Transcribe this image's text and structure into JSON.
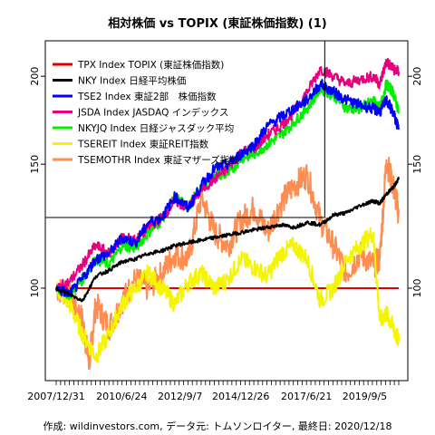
{
  "chart_data": {
    "type": "line",
    "title": "相対株価 vs TOPIX (東証株価指数) (1)",
    "caption": "作成: wildinvestors.com, データ元: トムソンロイター, 最終日: 2020/12/18",
    "x_tick_labels": [
      "2007/12/31",
      "2010/6/24",
      "2012/9/7",
      "2014/12/26",
      "2017/6/21",
      "2019/9/5"
    ],
    "y_ticks": [
      100,
      150,
      200
    ],
    "y_scale": "log",
    "ylim": [
      75,
      220
    ],
    "grid": false,
    "legend_position": "top-left",
    "reference_hline": {
      "y": 100,
      "color": "#e00000"
    },
    "crosshair": {
      "x_date": "2018/3/1",
      "y": 126
    },
    "series": [
      {
        "name": "TPX Index TOPIX (東証株価指数)",
        "color": "#e00000",
        "points": [
          [
            "2007/12/31",
            100
          ],
          [
            "2020/12/18",
            100
          ]
        ]
      },
      {
        "name": "NKY Index 日経平均株価",
        "color": "#000000",
        "points": [
          [
            "2007/12/31",
            100
          ],
          [
            "2008/6/30",
            98
          ],
          [
            "2008/12/31",
            96
          ],
          [
            "2009/6/30",
            104
          ],
          [
            "2009/12/31",
            106
          ],
          [
            "2010/6/30",
            109
          ],
          [
            "2010/12/31",
            110
          ],
          [
            "2011/6/30",
            112
          ],
          [
            "2011/12/31",
            113
          ],
          [
            "2012/6/30",
            115
          ],
          [
            "2012/12/31",
            116
          ],
          [
            "2013/6/30",
            117
          ],
          [
            "2013/12/31",
            118
          ],
          [
            "2014/6/30",
            119
          ],
          [
            "2014/12/31",
            120
          ],
          [
            "2015/6/30",
            121
          ],
          [
            "2015/12/31",
            122
          ],
          [
            "2016/6/30",
            123
          ],
          [
            "2016/12/31",
            122
          ],
          [
            "2017/6/30",
            124
          ],
          [
            "2017/12/31",
            123
          ],
          [
            "2018/6/30",
            127
          ],
          [
            "2018/12/31",
            128
          ],
          [
            "2019/6/30",
            131
          ],
          [
            "2019/12/31",
            133
          ],
          [
            "2020/3/31",
            132
          ],
          [
            "2020/6/30",
            136
          ],
          [
            "2020/9/30",
            139
          ],
          [
            "2020/12/18",
            143
          ]
        ]
      },
      {
        "name": "TSE2 Index 東証2部　株価指数",
        "color": "#0000ff",
        "points": [
          [
            "2007/12/31",
            100
          ],
          [
            "2008/6/30",
            98
          ],
          [
            "2008/12/31",
            103
          ],
          [
            "2009/6/30",
            110
          ],
          [
            "2009/12/31",
            112
          ],
          [
            "2010/6/30",
            118
          ],
          [
            "2010/12/31",
            116
          ],
          [
            "2011/6/30",
            124
          ],
          [
            "2011/12/31",
            126
          ],
          [
            "2012/6/30",
            135
          ],
          [
            "2012/12/31",
            130
          ],
          [
            "2013/6/30",
            140
          ],
          [
            "2013/12/31",
            148
          ],
          [
            "2014/6/30",
            150
          ],
          [
            "2014/12/31",
            155
          ],
          [
            "2015/6/30",
            160
          ],
          [
            "2015/12/31",
            170
          ],
          [
            "2016/6/30",
            175
          ],
          [
            "2016/12/31",
            180
          ],
          [
            "2017/6/30",
            185
          ],
          [
            "2017/12/31",
            195
          ],
          [
            "2018/6/30",
            190
          ],
          [
            "2018/12/31",
            185
          ],
          [
            "2019/6/30",
            182
          ],
          [
            "2019/12/31",
            180
          ],
          [
            "2020/3/31",
            178
          ],
          [
            "2020/6/30",
            185
          ],
          [
            "2020/9/30",
            178
          ],
          [
            "2020/12/18",
            168
          ]
        ]
      },
      {
        "name": "JSDA Index JASDAQ インデックス",
        "color": "#e6007e",
        "points": [
          [
            "2007/12/31",
            100
          ],
          [
            "2008/6/30",
            102
          ],
          [
            "2008/12/31",
            108
          ],
          [
            "2009/6/30",
            115
          ],
          [
            "2009/12/31",
            112
          ],
          [
            "2010/6/30",
            118
          ],
          [
            "2010/12/31",
            117
          ],
          [
            "2011/6/30",
            122
          ],
          [
            "2011/12/31",
            126
          ],
          [
            "2012/6/30",
            133
          ],
          [
            "2012/12/31",
            130
          ],
          [
            "2013/6/30",
            138
          ],
          [
            "2013/12/31",
            143
          ],
          [
            "2014/6/30",
            148
          ],
          [
            "2014/12/31",
            156
          ],
          [
            "2015/6/30",
            158
          ],
          [
            "2015/12/31",
            165
          ],
          [
            "2016/6/30",
            170
          ],
          [
            "2016/12/31",
            178
          ],
          [
            "2017/6/30",
            190
          ],
          [
            "2017/12/31",
            205
          ],
          [
            "2018/6/30",
            200
          ],
          [
            "2018/12/31",
            195
          ],
          [
            "2019/6/30",
            198
          ],
          [
            "2019/12/31",
            200
          ],
          [
            "2020/3/31",
            195
          ],
          [
            "2020/6/30",
            210
          ],
          [
            "2020/9/30",
            205
          ],
          [
            "2020/12/18",
            203
          ]
        ]
      },
      {
        "name": "NKYJQ Index 日経ジャスダック平均",
        "color": "#00ee00",
        "points": [
          [
            "2007/12/31",
            100
          ],
          [
            "2008/6/30",
            98
          ],
          [
            "2008/12/31",
            103
          ],
          [
            "2009/6/30",
            110
          ],
          [
            "2009/12/31",
            108
          ],
          [
            "2010/6/30",
            115
          ],
          [
            "2010/12/31",
            114
          ],
          [
            "2011/6/30",
            120
          ],
          [
            "2011/12/31",
            125
          ],
          [
            "2012/6/30",
            135
          ],
          [
            "2012/12/31",
            130
          ],
          [
            "2013/6/30",
            140
          ],
          [
            "2013/12/31",
            145
          ],
          [
            "2014/6/30",
            145
          ],
          [
            "2014/12/31",
            153
          ],
          [
            "2015/6/30",
            155
          ],
          [
            "2015/12/31",
            160
          ],
          [
            "2016/6/30",
            165
          ],
          [
            "2016/12/31",
            172
          ],
          [
            "2017/6/30",
            180
          ],
          [
            "2017/12/31",
            192
          ],
          [
            "2018/6/30",
            188
          ],
          [
            "2018/12/31",
            180
          ],
          [
            "2019/6/30",
            180
          ],
          [
            "2019/12/31",
            185
          ],
          [
            "2020/3/31",
            180
          ],
          [
            "2020/6/30",
            195
          ],
          [
            "2020/9/30",
            190
          ],
          [
            "2020/12/18",
            178
          ]
        ]
      },
      {
        "name": "TSEREIT Index 東証REIT指数",
        "color": "#f5f500",
        "points": [
          [
            "2007/12/31",
            100
          ],
          [
            "2008/6/30",
            95
          ],
          [
            "2008/12/31",
            86
          ],
          [
            "2009/6/30",
            80
          ],
          [
            "2009/12/31",
            86
          ],
          [
            "2010/6/30",
            95
          ],
          [
            "2010/12/31",
            100
          ],
          [
            "2011/6/30",
            105
          ],
          [
            "2011/12/31",
            100
          ],
          [
            "2012/6/30",
            95
          ],
          [
            "2012/12/31",
            102
          ],
          [
            "2013/6/30",
            105
          ],
          [
            "2013/12/31",
            100
          ],
          [
            "2014/6/30",
            103
          ],
          [
            "2014/12/31",
            110
          ],
          [
            "2015/6/30",
            107
          ],
          [
            "2015/12/31",
            104
          ],
          [
            "2016/6/30",
            112
          ],
          [
            "2016/12/31",
            115
          ],
          [
            "2017/6/30",
            110
          ],
          [
            "2017/12/31",
            96
          ],
          [
            "2018/6/30",
            100
          ],
          [
            "2018/12/31",
            110
          ],
          [
            "2019/6/30",
            115
          ],
          [
            "2019/12/31",
            120
          ],
          [
            "2020/3/31",
            90
          ],
          [
            "2020/6/30",
            92
          ],
          [
            "2020/9/30",
            88
          ],
          [
            "2020/12/18",
            84
          ]
        ]
      },
      {
        "name": "TSEMOTHR Index 東証マザーズ指数",
        "color": "#ff8c50",
        "points": [
          [
            "2007/12/31",
            100
          ],
          [
            "2008/6/30",
            98
          ],
          [
            "2008/12/31",
            90
          ],
          [
            "2009/3/31",
            78
          ],
          [
            "2009/6/30",
            95
          ],
          [
            "2009/12/31",
            88
          ],
          [
            "2010/6/30",
            96
          ],
          [
            "2010/12/31",
            103
          ],
          [
            "2011/6/30",
            100
          ],
          [
            "2011/12/31",
            105
          ],
          [
            "2012/6/30",
            112
          ],
          [
            "2012/12/31",
            110
          ],
          [
            "2013/6/30",
            135
          ],
          [
            "2013/12/31",
            120
          ],
          [
            "2014/6/30",
            115
          ],
          [
            "2014/12/31",
            125
          ],
          [
            "2015/6/30",
            130
          ],
          [
            "2015/12/31",
            120
          ],
          [
            "2016/6/30",
            132
          ],
          [
            "2016/12/31",
            140
          ],
          [
            "2017/6/30",
            145
          ],
          [
            "2017/12/31",
            125
          ],
          [
            "2018/6/30",
            115
          ],
          [
            "2018/12/31",
            105
          ],
          [
            "2019/6/30",
            112
          ],
          [
            "2019/12/31",
            108
          ],
          [
            "2020/3/31",
            110
          ],
          [
            "2020/6/30",
            152
          ],
          [
            "2020/9/30",
            140
          ],
          [
            "2020/12/18",
            128
          ]
        ]
      }
    ]
  }
}
